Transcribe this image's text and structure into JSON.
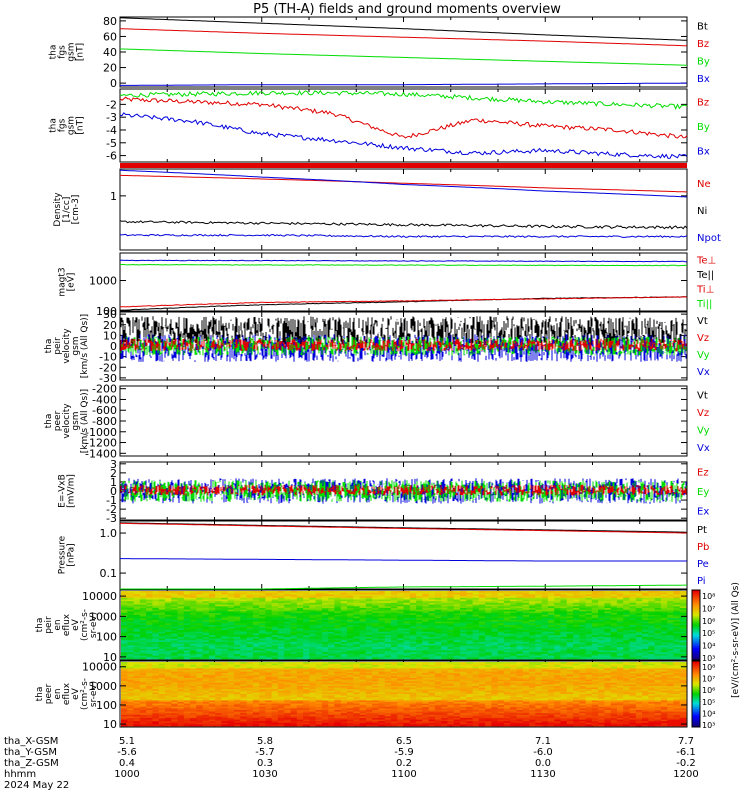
{
  "title": "P5 (TH-A) fields and ground moments overview",
  "date_label": "2024 May 22",
  "footer": {
    "row_labels": [
      "tha_X-GSM",
      "tha_Y-GSM",
      "tha_Z-GSM",
      "hhmm"
    ],
    "columns": [
      [
        "5.1",
        "-5.6",
        "0.4",
        "1000"
      ],
      [
        "5.8",
        "-5.7",
        "0.3",
        "1030"
      ],
      [
        "6.5",
        "-5.9",
        "0.2",
        "1100"
      ],
      [
        "7.1",
        "-6.0",
        "0.0",
        "1130"
      ],
      [
        "7.7",
        "-6.1",
        "-0.2",
        "1200"
      ]
    ]
  },
  "colorbar": {
    "label": "[eV/(cm²-s-sr-eV)] (All Qs)",
    "top_ticks": [
      "10⁸",
      "10⁷",
      "10⁶",
      "10⁵",
      "10⁴",
      "10³"
    ],
    "bottom_ticks": [
      "10⁸",
      "10⁷",
      "10⁶",
      "10⁵",
      "10⁴",
      "10³"
    ]
  },
  "colors": {
    "black": "#000000",
    "red": "#e00000",
    "green": "#00dd00",
    "blue": "#0000dd"
  },
  "chart_data": [
    {
      "type": "line",
      "panel": "fgs_gsm",
      "ylabel": [
        "tha",
        "fgs",
        "gsm",
        "[nT]"
      ],
      "ylim": [
        -5,
        85
      ],
      "yticks": [
        "80",
        "60",
        "40",
        "20",
        "0"
      ],
      "legend": [
        "Bt",
        "Bz",
        "By",
        "Bx"
      ],
      "x": [
        "1000",
        "1030",
        "1100",
        "1130",
        "1200"
      ],
      "series": [
        {
          "name": "Bt",
          "color": "#000000",
          "values": [
            84,
            77,
            70,
            62,
            55
          ]
        },
        {
          "name": "Bz",
          "color": "#e00000",
          "values": [
            70,
            64,
            59,
            54,
            48
          ]
        },
        {
          "name": "By",
          "color": "#00dd00",
          "values": [
            44,
            38,
            33,
            28,
            23
          ]
        },
        {
          "name": "Bx",
          "color": "#0000dd",
          "values": [
            -3,
            -2,
            -2,
            -1,
            0
          ]
        }
      ]
    },
    {
      "type": "line",
      "panel": "fgs_gsm_zoom",
      "ylabel": [
        "tha",
        "fgs",
        "gsm",
        "[nT]"
      ],
      "ylim": [
        -6.5,
        -0.8
      ],
      "yticks": [
        "-2",
        "-3",
        "-4",
        "-5",
        "-6"
      ],
      "legend": [
        "Bz",
        "By",
        "Bx"
      ],
      "x": [
        "1000",
        "1015",
        "1030",
        "1045",
        "1100",
        "1115",
        "1130",
        "1145",
        "1200"
      ],
      "series": [
        {
          "name": "Bz",
          "color": "#e00000",
          "values": [
            -1.6,
            -1.8,
            -2.0,
            -2.7,
            -4.6,
            -3.2,
            -3.7,
            -4.0,
            -4.6
          ]
        },
        {
          "name": "By",
          "color": "#00dd00",
          "values": [
            -1.3,
            -1.2,
            -1.1,
            -1.1,
            -1.2,
            -1.5,
            -1.8,
            -2.0,
            -2.2
          ]
        },
        {
          "name": "Bx",
          "color": "#0000dd",
          "values": [
            -2.8,
            -3.3,
            -4.3,
            -4.8,
            -5.4,
            -5.8,
            -5.6,
            -5.9,
            -6.1
          ]
        }
      ]
    },
    {
      "type": "line",
      "panel": "density",
      "ylabel": [
        "Density",
        "[1/cc]",
        "[cm-3]"
      ],
      "yscale": "log",
      "ylim": [
        0.08,
        3.5
      ],
      "yticks": [
        "1"
      ],
      "legend": [
        "Ne",
        "Ni",
        "Npot"
      ],
      "x": [
        "1000",
        "1030",
        "1100",
        "1130",
        "1200"
      ],
      "series": [
        {
          "name": "Ne",
          "color": "#e00000",
          "values": [
            2.6,
            2.2,
            1.8,
            1.45,
            1.2
          ]
        },
        {
          "name": "Ni",
          "color": "#000000",
          "values": [
            0.3,
            0.28,
            0.26,
            0.24,
            0.23
          ]
        },
        {
          "name": "Npot",
          "color": "#0000dd",
          "values": [
            3.3,
            2.4,
            1.7,
            1.25,
            0.95
          ]
        },
        {
          "name": "Npot_low",
          "color": "#0000dd",
          "values": [
            0.16,
            0.16,
            0.15,
            0.15,
            0.15
          ]
        }
      ]
    },
    {
      "type": "line",
      "panel": "temperature",
      "ylabel": [
        "magt3",
        "[eV]"
      ],
      "yscale": "log",
      "ylim": [
        100,
        8000
      ],
      "yticks": [
        "1000",
        "100"
      ],
      "legend": [
        "Te⊥",
        "Te||",
        "Ti⊥",
        "Ti||"
      ],
      "x": [
        "1000",
        "1030",
        "1100",
        "1130",
        "1200"
      ],
      "series": [
        {
          "name": "Te⊥",
          "color": "#0000dd",
          "values": [
            4600,
            4500,
            4400,
            4300,
            4200
          ]
        },
        {
          "name": "Te||",
          "color": "#000000",
          "values": [
            105,
            160,
            200,
            260,
            290
          ]
        },
        {
          "name": "Ti⊥",
          "color": "#e00000",
          "values": [
            135,
            190,
            215,
            250,
            290
          ]
        },
        {
          "name": "Ti||",
          "color": "#00dd00",
          "values": [
            3300,
            3250,
            3200,
            3150,
            3100
          ]
        }
      ]
    },
    {
      "type": "line",
      "panel": "peir_velocity",
      "ylabel": [
        "tha",
        "peir",
        "velocity",
        "gsm",
        "[km/s (All Qs)]"
      ],
      "ylim": [
        -32,
        32
      ],
      "yticks": [
        "30",
        "20",
        "10",
        "0",
        "-10",
        "-20",
        "-30"
      ],
      "legend": [
        "Vt",
        "Vz",
        "Vy",
        "Vx"
      ],
      "noise": "Vt fluctuates 0 to 30; Vz, Vy, Vx fluctuate around 0 (about -20 to 15)"
    },
    {
      "type": "line",
      "panel": "peer_velocity",
      "ylabel": [
        "tha",
        "peer",
        "velocity",
        "gsm",
        "[km/s (All Qs)]"
      ],
      "ylim": [
        -1450,
        -150
      ],
      "yticks": [
        "-200",
        "-400",
        "-600",
        "-800",
        "-1000",
        "-1200",
        "-1400"
      ],
      "legend": [
        "Vt",
        "Vz",
        "Vy",
        "Vx"
      ]
    },
    {
      "type": "line",
      "panel": "efield",
      "ylabel": [
        "E=-VxB",
        "[mV/m]"
      ],
      "ylim": [
        -3.2,
        3.2
      ],
      "yticks": [
        "3",
        "2",
        "1",
        "0",
        "-1",
        "-2",
        "-3"
      ],
      "legend": [
        "Ez",
        "Ey",
        "Ex"
      ],
      "noise": "All components fluctuate around 0 within about ±1.5"
    },
    {
      "type": "line",
      "panel": "pressure",
      "ylabel": [
        "Pressure",
        "[nPa]"
      ],
      "yscale": "log",
      "ylim": [
        0.04,
        2.0
      ],
      "yticks": [
        "1.0",
        "0.1"
      ],
      "legend": [
        "Pt",
        "Pb",
        "Pe",
        "Pi"
      ],
      "x": [
        "1000",
        "1030",
        "1100",
        "1130",
        "1200"
      ],
      "series": [
        {
          "name": "Pt",
          "color": "#000000",
          "values": [
            1.8,
            1.55,
            1.35,
            1.2,
            1.05
          ]
        },
        {
          "name": "Pb",
          "color": "#e00000",
          "values": [
            1.75,
            1.5,
            1.3,
            1.15,
            1.0
          ]
        },
        {
          "name": "Pe",
          "color": "#0000dd",
          "values": [
            0.23,
            0.22,
            0.21,
            0.2,
            0.2
          ]
        },
        {
          "name": "Pi",
          "color": "#00dd00",
          "values": [
            0.038,
            0.04,
            0.045,
            0.047,
            0.05
          ]
        }
      ]
    },
    {
      "type": "heatmap",
      "panel": "peir_en_eflux",
      "ylabel": [
        "tha",
        "peir",
        "en",
        "eflux",
        "eV",
        "(cm²-s-",
        "sr-eV)"
      ],
      "yscale": "log",
      "ylim": [
        7,
        20000
      ],
      "yticks": [
        "10000",
        "1000",
        "100",
        "10"
      ]
    },
    {
      "type": "heatmap",
      "panel": "peer_en_eflux",
      "ylabel": [
        "tha",
        "peer",
        "en",
        "eflux",
        "eV",
        "(cm²-s-",
        "sr-eV)"
      ],
      "yscale": "log",
      "ylim": [
        7,
        20000
      ],
      "yticks": [
        "10000",
        "1000",
        "100",
        "10"
      ]
    }
  ]
}
